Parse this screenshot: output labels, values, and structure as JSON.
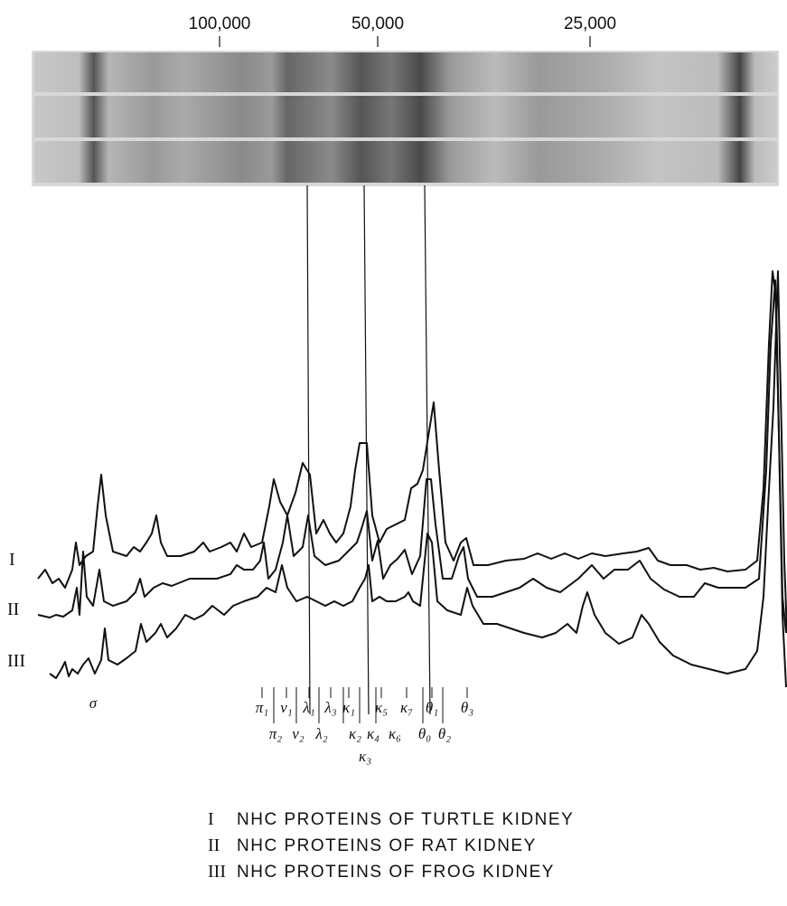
{
  "mw_scale": {
    "ticks": [
      "100,000",
      "50,000",
      "25,000"
    ]
  },
  "trace_labels": [
    "I",
    "II",
    "III"
  ],
  "bands": {
    "sigma": "σ",
    "top": [
      "π₁",
      "ν₁",
      "λ₁",
      "λ₃",
      "κ₁",
      "κ₅",
      "κ₇",
      "θ₁",
      "θ₃"
    ],
    "bottom": [
      "π₂",
      "ν₂",
      "λ₂",
      "κ₂",
      "κ₄",
      "κ₆",
      "θ₀",
      "θ₂"
    ],
    "third": "κ₃"
  },
  "legend": [
    {
      "numeral": "I",
      "text": "NHC PROTEINS OF TURTLE KIDNEY"
    },
    {
      "numeral": "II",
      "text": "NHC PROTEINS OF RAT KIDNEY"
    },
    {
      "numeral": "III",
      "text": "NHC PROTEINS OF FROG KIDNEY"
    }
  ]
}
